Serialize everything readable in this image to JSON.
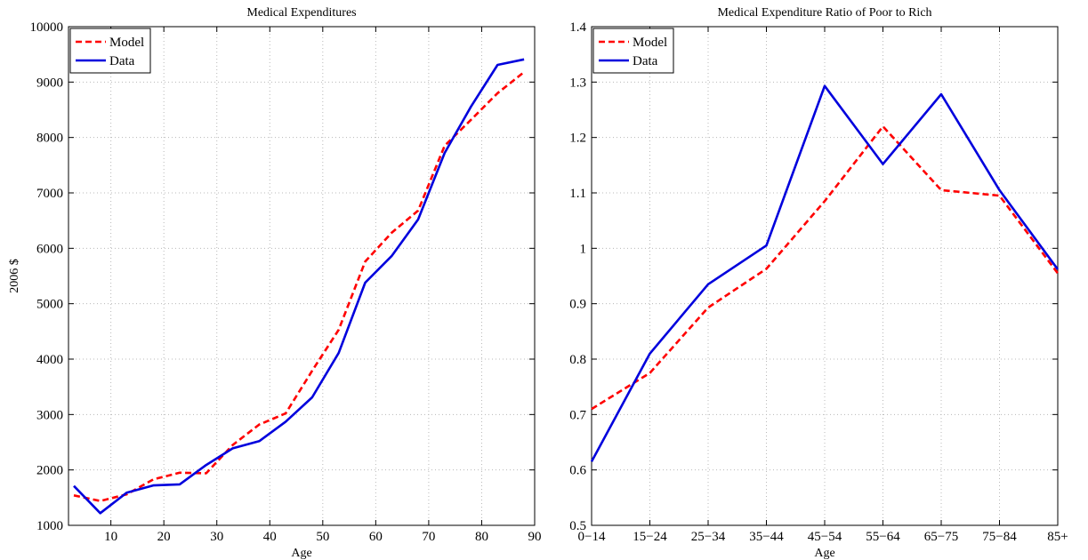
{
  "chart_data": [
    {
      "type": "line",
      "title": "Medical Expenditures",
      "xlabel": "Age",
      "ylabel": "2006 $",
      "xlim": [
        2,
        90
      ],
      "ylim": [
        1000,
        10000
      ],
      "xticks": [
        "10",
        "20",
        "30",
        "40",
        "50",
        "60",
        "70",
        "80",
        "90"
      ],
      "yticks": [
        "1000",
        "2000",
        "3000",
        "4000",
        "5000",
        "6000",
        "7000",
        "8000",
        "9000",
        "10000"
      ],
      "grid": true,
      "legend_position": "top-left",
      "x": [
        3,
        8,
        13,
        18,
        23,
        28,
        33,
        38,
        43,
        48,
        53,
        58,
        63,
        68,
        73,
        78,
        83,
        88
      ],
      "series": [
        {
          "name": "Model",
          "color": "#ff0000",
          "style": "dashed",
          "values": [
            1540,
            1440,
            1560,
            1830,
            1950,
            1940,
            2450,
            2820,
            3020,
            3790,
            4530,
            5760,
            6280,
            6680,
            7850,
            8320,
            8800,
            9180
          ]
        },
        {
          "name": "Data",
          "color": "#0000dd",
          "style": "solid",
          "values": [
            1710,
            1220,
            1590,
            1720,
            1740,
            2090,
            2390,
            2520,
            2870,
            3310,
            4110,
            5380,
            5860,
            6520,
            7720,
            8560,
            9310,
            9410
          ]
        }
      ]
    },
    {
      "type": "line",
      "title": "Medical Expenditure Ratio of Poor to Rich",
      "xlabel": "Age",
      "ylabel": "",
      "ylim": [
        0.5,
        1.4
      ],
      "categories": [
        "0−14",
        "15−24",
        "25−34",
        "35−44",
        "45−54",
        "55−64",
        "65−75",
        "75−84",
        "85+"
      ],
      "yticks": [
        "0.5",
        "0.6",
        "0.7",
        "0.8",
        "0.9",
        "1",
        "1.1",
        "1.2",
        "1.3",
        "1.4"
      ],
      "grid": true,
      "legend_position": "top-left",
      "series": [
        {
          "name": "Model",
          "color": "#ff0000",
          "style": "dashed",
          "values": [
            0.71,
            0.775,
            0.893,
            0.963,
            1.085,
            1.22,
            1.105,
            1.095,
            0.955
          ]
        },
        {
          "name": "Data",
          "color": "#0000dd",
          "style": "solid",
          "values": [
            0.615,
            0.81,
            0.935,
            1.005,
            1.293,
            1.152,
            1.278,
            1.105,
            0.962
          ]
        }
      ]
    }
  ]
}
